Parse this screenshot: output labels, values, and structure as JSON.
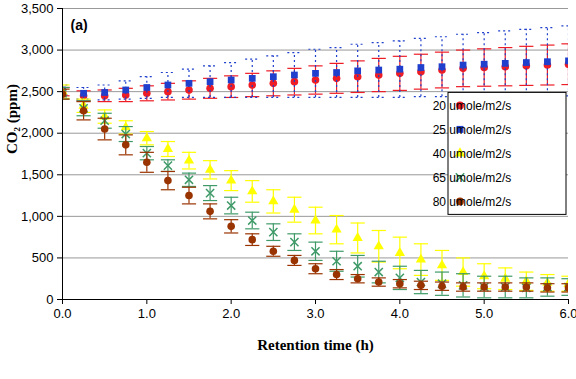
{
  "chart_data": {
    "type": "scatter",
    "x_label": "Retention time (h)",
    "y_label": "CO₂ (ppm)",
    "annotations": [
      "(a)"
    ],
    "x": [
      0,
      0.25,
      0.5,
      0.75,
      1,
      1.25,
      1.5,
      1.75,
      2,
      2.25,
      2.5,
      2.75,
      3,
      3.25,
      3.5,
      3.75,
      4,
      4.25,
      4.5,
      4.75,
      5,
      5.25,
      5.5,
      5.75,
      6
    ],
    "xlim": [
      0,
      6
    ],
    "xticks": [
      0,
      1,
      2,
      3,
      4,
      5,
      6
    ],
    "ylim": [
      0,
      3500
    ],
    "yticks": [
      0,
      500,
      1000,
      1500,
      2000,
      2500,
      3000,
      3500
    ],
    "grid": true,
    "legend": "right",
    "series": [
      {
        "name": "20 umole/m2/s",
        "color": "#ee1c25",
        "marker": "circle",
        "line_style": "solid",
        "values": [
          2500,
          2450,
          2450,
          2460,
          2480,
          2500,
          2520,
          2540,
          2560,
          2580,
          2600,
          2620,
          2640,
          2660,
          2680,
          2700,
          2720,
          2740,
          2760,
          2780,
          2790,
          2800,
          2810,
          2820,
          2830
        ],
        "error": [
          50,
          60,
          70,
          80,
          90,
          100,
          110,
          120,
          130,
          140,
          150,
          160,
          170,
          180,
          190,
          200,
          205,
          210,
          215,
          220,
          225,
          230,
          235,
          240,
          245
        ]
      },
      {
        "name": "25 umole/m2/s",
        "color": "#1f3fcc",
        "marker": "square",
        "line_style": "dotted",
        "values": [
          2520,
          2480,
          2490,
          2520,
          2550,
          2580,
          2600,
          2620,
          2640,
          2660,
          2680,
          2700,
          2720,
          2730,
          2750,
          2760,
          2770,
          2790,
          2800,
          2820,
          2830,
          2840,
          2850,
          2860,
          2870
        ],
        "error": [
          60,
          70,
          90,
          110,
          130,
          150,
          170,
          190,
          210,
          230,
          250,
          270,
          290,
          300,
          320,
          330,
          340,
          350,
          360,
          370,
          380,
          390,
          400,
          410,
          420
        ]
      },
      {
        "name": "40 umole/m2/s",
        "color": "#ffff00",
        "marker": "triangle",
        "line_style": "solid",
        "values": [
          2500,
          2330,
          2200,
          2070,
          1940,
          1810,
          1670,
          1560,
          1430,
          1300,
          1180,
          1080,
          950,
          840,
          740,
          640,
          560,
          480,
          410,
          330,
          280,
          250,
          220,
          200,
          190
        ],
        "error": [
          80,
          80,
          80,
          80,
          80,
          90,
          100,
          110,
          120,
          130,
          140,
          150,
          160,
          170,
          180,
          190,
          190,
          190,
          180,
          170,
          150,
          130,
          110,
          100,
          90
        ]
      },
      {
        "name": "65 umole/m2/s",
        "color": "#3f9a68",
        "marker": "x",
        "line_style": "solid",
        "values": [
          2480,
          2300,
          2150,
          1990,
          1760,
          1610,
          1440,
          1280,
          1130,
          950,
          810,
          690,
          580,
          460,
          400,
          330,
          260,
          210,
          190,
          170,
          150,
          150,
          140,
          150,
          150
        ],
        "error": [
          70,
          90,
          90,
          90,
          80,
          70,
          80,
          90,
          100,
          100,
          100,
          100,
          110,
          120,
          130,
          130,
          140,
          140,
          140,
          140,
          130,
          130,
          120,
          110,
          100
        ]
      },
      {
        "name": "80 umole/m2/s",
        "color": "#993300",
        "marker": "circle",
        "line_style": "solid",
        "values": [
          2470,
          2270,
          2050,
          1860,
          1650,
          1430,
          1250,
          1060,
          880,
          720,
          580,
          470,
          370,
          300,
          250,
          210,
          190,
          170,
          160,
          150,
          150,
          150,
          150,
          140,
          140
        ],
        "error": [
          60,
          110,
          130,
          120,
          120,
          110,
          100,
          90,
          80,
          70,
          60,
          60,
          60,
          60,
          50,
          50,
          50,
          50,
          50,
          50,
          50,
          50,
          50,
          50,
          50
        ]
      }
    ]
  }
}
